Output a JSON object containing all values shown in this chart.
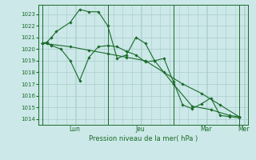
{
  "background_color": "#cce8e8",
  "grid_color": "#aacccc",
  "line_color": "#1a6b2a",
  "xlabel": "Pression niveau de la mer( hPa )",
  "ylim": [
    1013.5,
    1023.8
  ],
  "yticks": [
    1014,
    1015,
    1016,
    1017,
    1018,
    1019,
    1020,
    1021,
    1022,
    1023
  ],
  "x_day_labels": [
    "Lun",
    "Jeu",
    "Mar",
    "Mer"
  ],
  "vline_positions": [
    0.0,
    3.5,
    7.0,
    10.5
  ],
  "s1_x": [
    0.0,
    0.25,
    0.5,
    0.75,
    1.5,
    2.0,
    2.5,
    3.0,
    3.5,
    4.0,
    4.5,
    5.0,
    5.5,
    6.0,
    6.5,
    7.0,
    7.5,
    8.0,
    8.5,
    9.0,
    9.5,
    10.0,
    10.5
  ],
  "s1_y": [
    1020.5,
    1020.6,
    1021.0,
    1021.5,
    1022.3,
    1023.4,
    1023.2,
    1023.2,
    1022.0,
    1019.2,
    1019.5,
    1021.0,
    1020.5,
    1019.0,
    1019.2,
    1017.2,
    1015.2,
    1014.9,
    1015.3,
    1015.8,
    1014.3,
    1014.2,
    1014.1
  ],
  "s2_x": [
    0.0,
    0.25,
    0.5,
    1.0,
    1.5,
    2.0,
    2.5,
    3.0,
    3.5,
    4.0,
    4.5,
    5.0,
    5.5,
    6.0,
    7.0,
    8.0,
    9.0,
    10.0,
    10.5
  ],
  "s2_y": [
    1020.5,
    1020.5,
    1020.3,
    1020.0,
    1019.0,
    1017.3,
    1019.3,
    1020.2,
    1020.3,
    1020.2,
    1019.8,
    1019.5,
    1018.9,
    1019.0,
    1017.0,
    1015.1,
    1014.8,
    1014.3,
    1014.2
  ],
  "s3_x": [
    0.0,
    0.5,
    1.5,
    2.5,
    3.5,
    4.5,
    5.5,
    6.5,
    7.5,
    8.5,
    9.5,
    10.5
  ],
  "s3_y": [
    1020.5,
    1020.4,
    1020.2,
    1019.9,
    1019.6,
    1019.3,
    1019.0,
    1018.0,
    1017.0,
    1016.2,
    1015.2,
    1014.2
  ]
}
